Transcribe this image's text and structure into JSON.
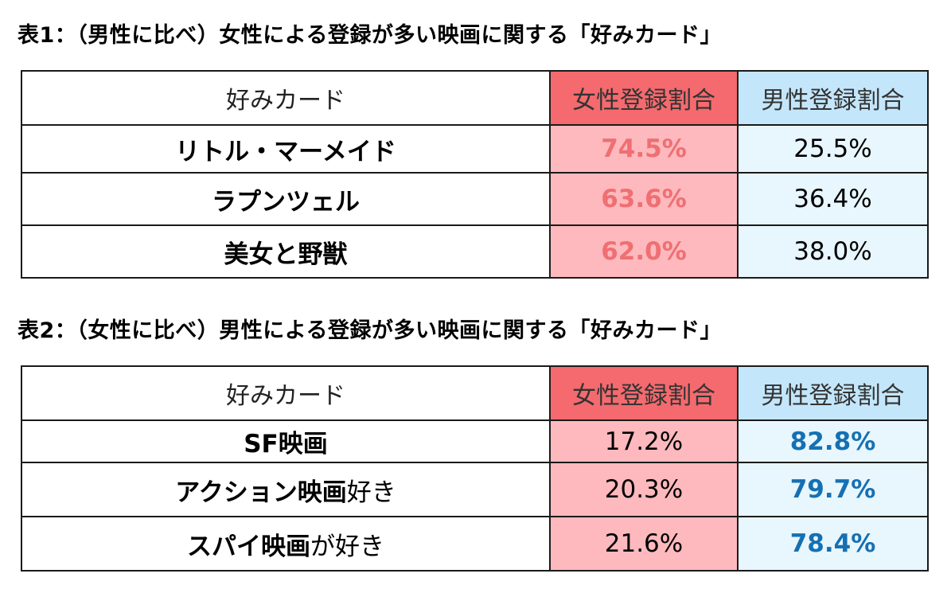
{
  "table1": {
    "title": "表1：（男性に比べ）女性による登録が多い映画に関する「好みカード」",
    "headers": {
      "card": "好みカード",
      "female": "女性登録割合",
      "male": "男性登録割合"
    },
    "rows": [
      {
        "card": "リトル・マーメイド",
        "card_tail": "",
        "female": "74.5%",
        "male": "25.5%"
      },
      {
        "card": "ラプンツェル",
        "card_tail": "",
        "female": "63.6%",
        "male": "36.4%"
      },
      {
        "card": "美女と野獣",
        "card_tail": "",
        "female": "62.0%",
        "male": "38.0%"
      }
    ]
  },
  "table2": {
    "title": "表2：（女性に比べ）男性による登録が多い映画に関する「好みカード」",
    "headers": {
      "card": "好みカード",
      "female": "女性登録割合",
      "male": "男性登録割合"
    },
    "rows": [
      {
        "card": "SF映画",
        "card_tail": "",
        "female": "17.2%",
        "male": "82.8%"
      },
      {
        "card": "アクション映画",
        "card_tail": "好き",
        "female": "20.3%",
        "male": "79.7%"
      },
      {
        "card": "スパイ映画",
        "card_tail": "が好き",
        "female": "21.6%",
        "male": "78.4%"
      }
    ]
  },
  "colors": {
    "female_header": "#f46a6e",
    "female_cell": "#fdb9bd",
    "female_highlight_text": "#ef6f73",
    "male_header": "#c4e6fb",
    "male_cell": "#e8f6fd",
    "male_highlight_text": "#1570b3"
  }
}
